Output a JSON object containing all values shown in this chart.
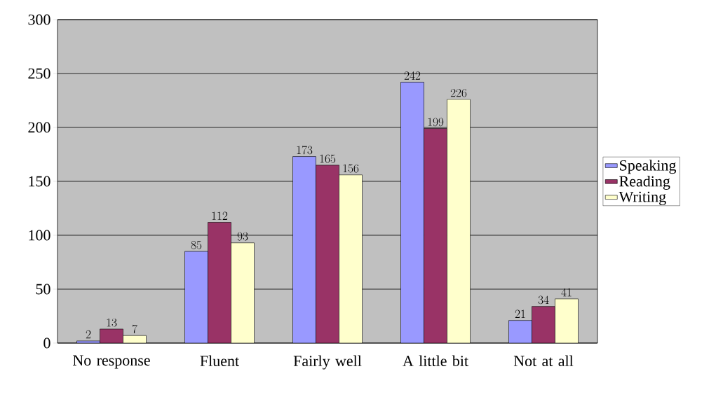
{
  "chart_data": {
    "type": "bar",
    "categories": [
      "No response",
      "Fluent",
      "Fairly well",
      "A little bit",
      "Not at all"
    ],
    "series": [
      {
        "name": "Speaking",
        "color": "#9999ff",
        "values": [
          2,
          85,
          173,
          242,
          21
        ]
      },
      {
        "name": "Reading",
        "color": "#993366",
        "values": [
          13,
          112,
          165,
          199,
          34
        ]
      },
      {
        "name": "Writing",
        "color": "#ffffcc",
        "values": [
          7,
          93,
          156,
          226,
          41
        ]
      }
    ],
    "ylim": [
      0,
      300
    ],
    "yticks": [
      0,
      50,
      100,
      150,
      200,
      250,
      300
    ],
    "grid": "y",
    "legend": "right",
    "data_labels": true
  }
}
